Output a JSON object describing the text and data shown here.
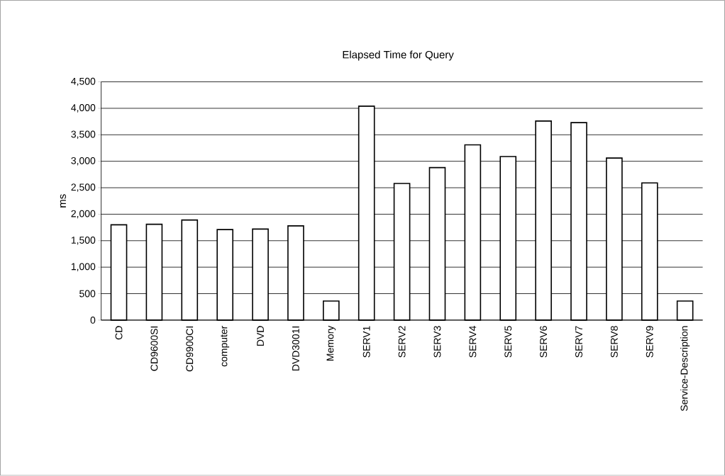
{
  "chart_data": {
    "type": "bar",
    "title": "Elapsed Time for Query",
    "ylabel": "ms",
    "categories": [
      "CD",
      "CD9600SI",
      "CD9900CI",
      "computer",
      "DVD",
      "DVD3001I",
      "Memory",
      "SERV1",
      "SERV2",
      "SERV3",
      "SERV4",
      "SERV5",
      "SERV6",
      "SERV7",
      "SERV8",
      "SERV9",
      "Service-Description"
    ],
    "values": [
      1800,
      1810,
      1890,
      1710,
      1720,
      1780,
      360,
      4040,
      2580,
      2880,
      3310,
      3090,
      3760,
      3730,
      3060,
      2590,
      360
    ],
    "color": "#ffffff",
    "ylim": [
      0,
      4500
    ],
    "yticks": [
      {
        "value": 0,
        "label": "0"
      },
      {
        "value": 500,
        "label": "500"
      },
      {
        "value": 1000,
        "label": "1,000"
      },
      {
        "value": 1500,
        "label": "1,500"
      },
      {
        "value": 2000,
        "label": "2,000"
      },
      {
        "value": 2500,
        "label": "2,500"
      },
      {
        "value": 3000,
        "label": "3,000"
      },
      {
        "value": 3500,
        "label": "3,500"
      },
      {
        "value": 4000,
        "label": "4,000"
      },
      {
        "value": 4500,
        "label": "4,500"
      }
    ],
    "grid": "y"
  }
}
